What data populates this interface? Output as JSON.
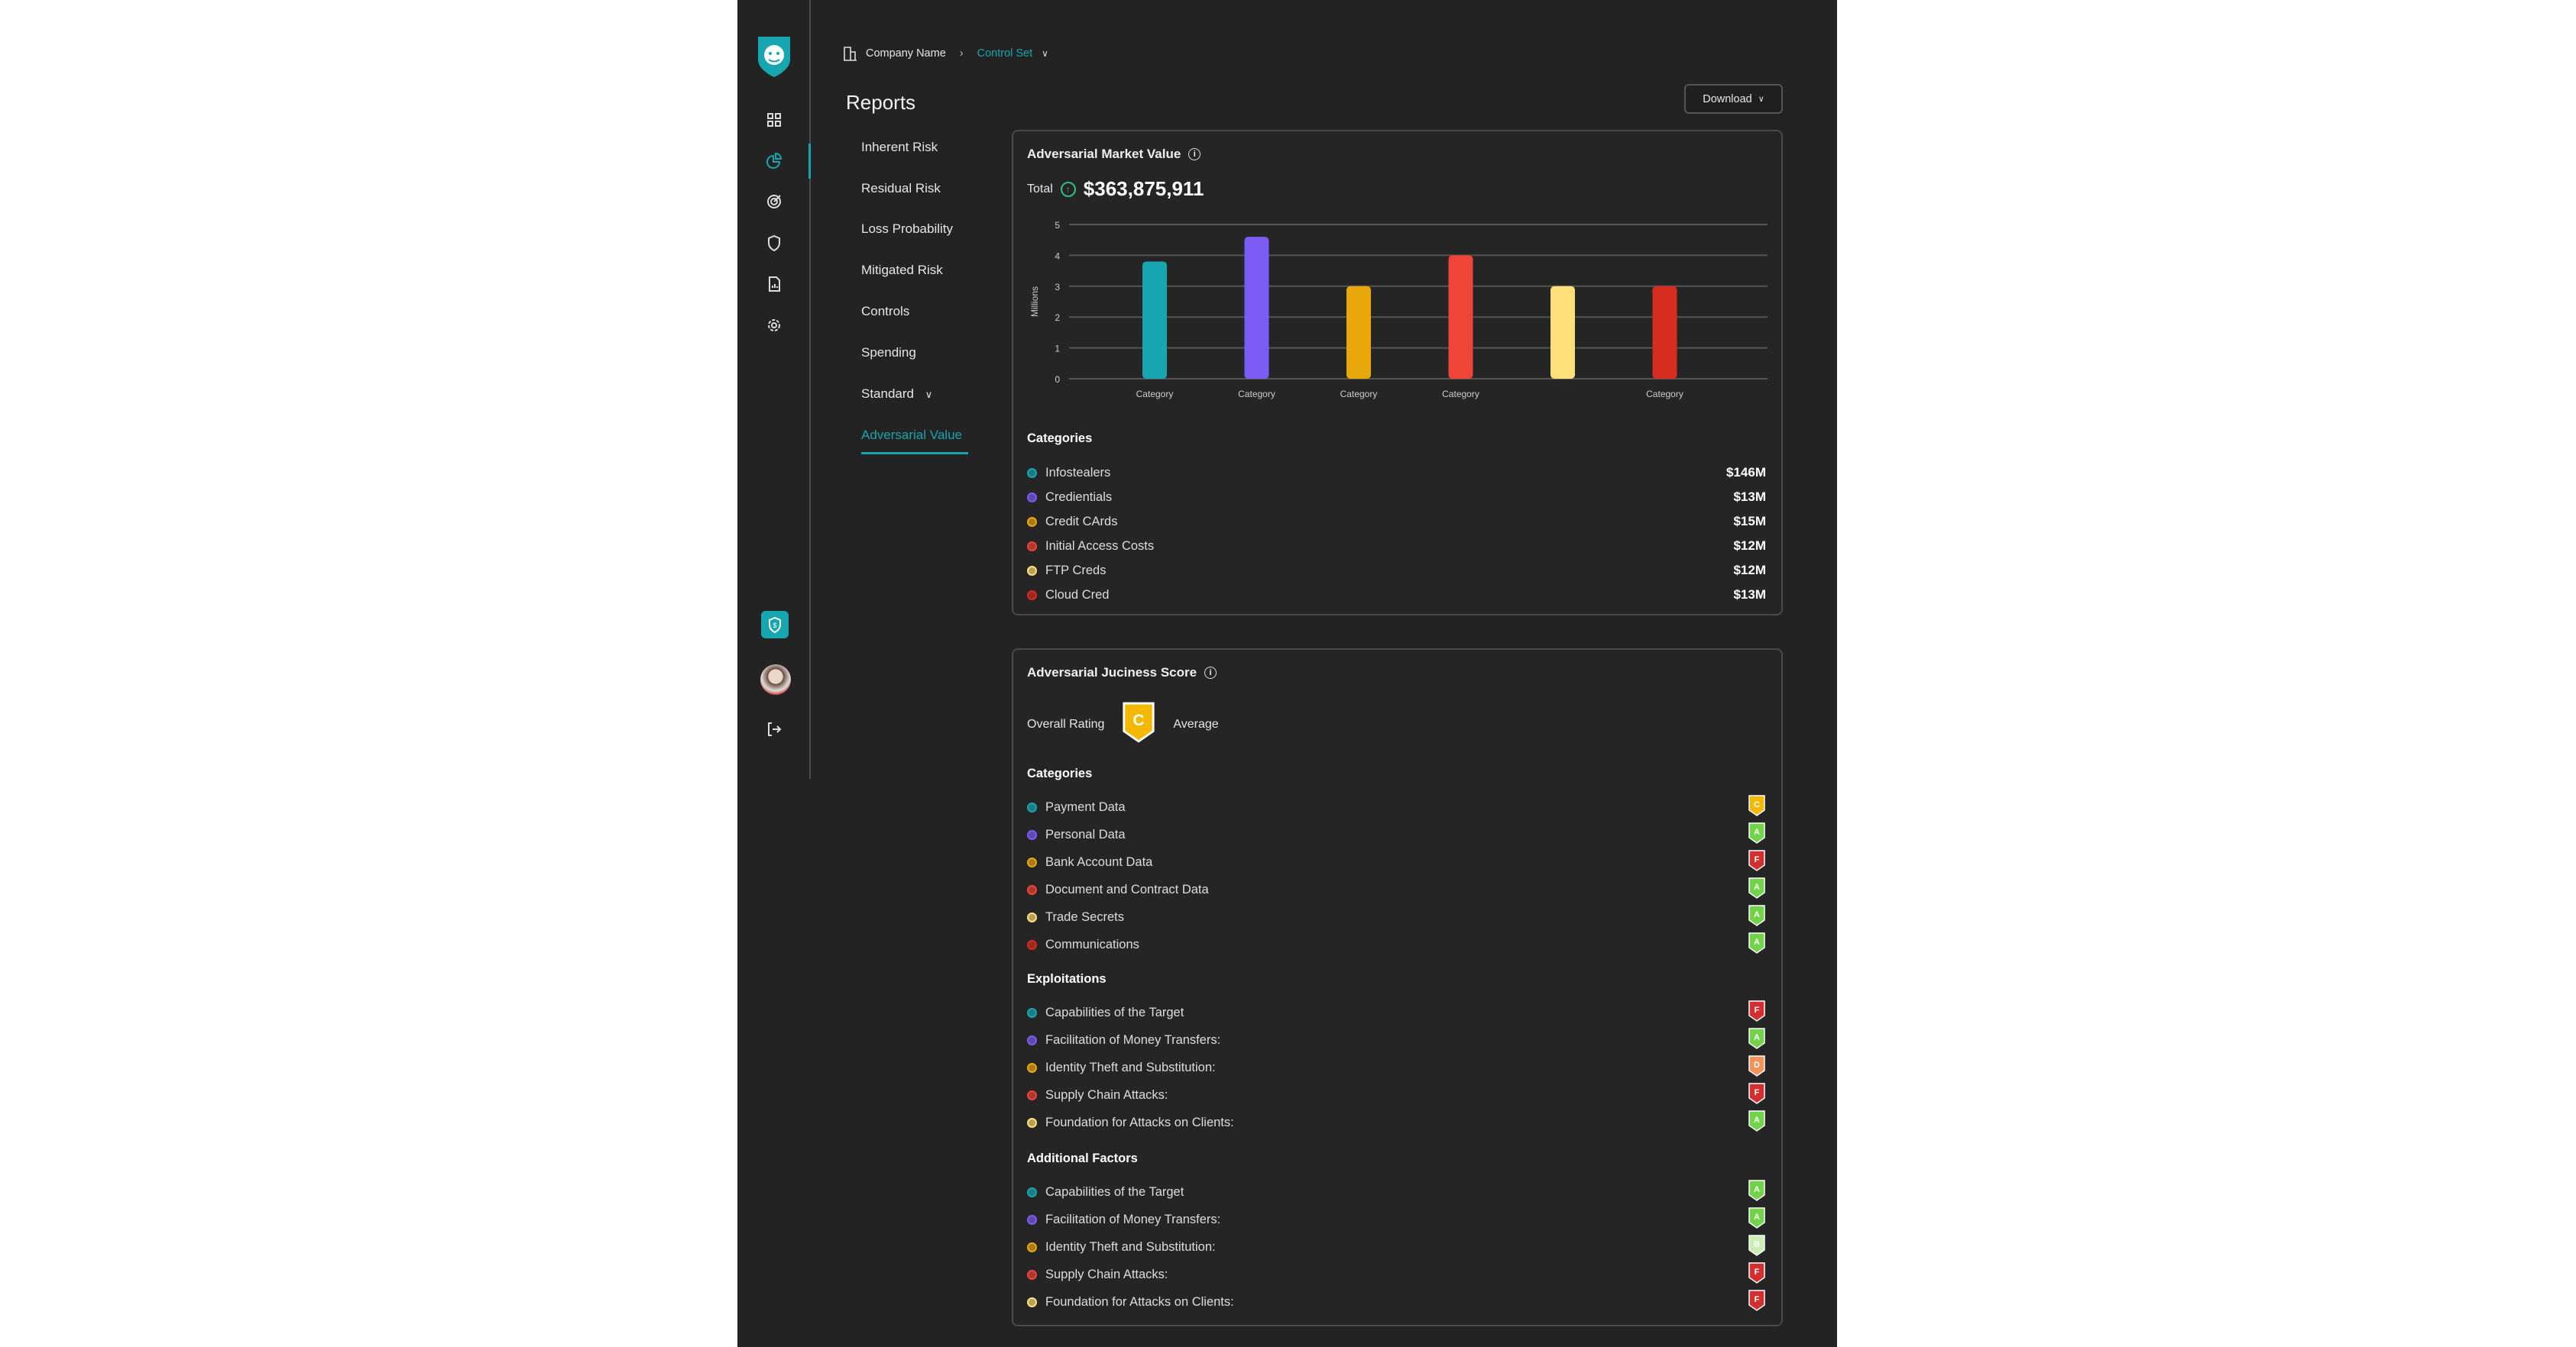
{
  "breadcrumb": {
    "company": "Company Name",
    "control_set": "Control Set"
  },
  "page_title": "Reports",
  "download_label": "Download",
  "subnav": [
    "Inherent Risk",
    "Residual Risk",
    "Loss Probability",
    "Mitigated Risk",
    "Controls",
    "Spending",
    "Standard",
    "Adversarial Value"
  ],
  "market": {
    "title": "Adversarial Market Value",
    "total_label": "Total",
    "total_value": "$363,875,911",
    "categories_heading": "Categories",
    "items": [
      {
        "name": "Infostealers",
        "value": "$146M",
        "color": "#17a6b0"
      },
      {
        "name": "Credientials",
        "value": "$13M",
        "color": "#7b5cf5"
      },
      {
        "name": "Credit CArds",
        "value": "$15M",
        "color": "#e8a80c"
      },
      {
        "name": "Initial Access Costs",
        "value": "$12M",
        "color": "#ef4438"
      },
      {
        "name": "FTP Creds",
        "value": "$12M",
        "color": "#fde07a"
      },
      {
        "name": "Cloud Cred",
        "value": "$13M",
        "color": "#d62d20"
      }
    ]
  },
  "chart_data": {
    "type": "bar",
    "title": "",
    "ylabel": "Millions",
    "xlabel": "",
    "ylim": [
      0,
      5
    ],
    "yticks": [
      0,
      1,
      2,
      3,
      4,
      5
    ],
    "categories": [
      "Category",
      "Category",
      "Category",
      "Category",
      "",
      "Category"
    ],
    "values": [
      3.8,
      4.6,
      3.0,
      4.0,
      3.0,
      3.0
    ],
    "colors": [
      "#17a6b0",
      "#7b5cf5",
      "#e8a80c",
      "#ef4438",
      "#fde07a",
      "#d62d20"
    ],
    "grid": true
  },
  "juciness": {
    "title": "Adversarial Juciness Score",
    "overall_label": "Overall Rating",
    "overall_grade": "C",
    "overall_text": "Average",
    "sections": [
      {
        "heading": "Categories",
        "items": [
          {
            "name": "Payment Data",
            "grade": "C"
          },
          {
            "name": "Personal Data",
            "grade": "A"
          },
          {
            "name": "Bank Account Data",
            "grade": "F"
          },
          {
            "name": "Document and Contract Data",
            "grade": "A"
          },
          {
            "name": "Trade Secrets",
            "grade": "A"
          },
          {
            "name": "Communications",
            "grade": "A"
          }
        ]
      },
      {
        "heading": "Exploitations",
        "items": [
          {
            "name": "Capabilities of the Target",
            "grade": "F"
          },
          {
            "name": "Facilitation of Money Transfers:",
            "grade": "A"
          },
          {
            "name": "Identity Theft and Substitution:",
            "grade": "D"
          },
          {
            "name": "Supply Chain Attacks:",
            "grade": "F"
          },
          {
            "name": "Foundation for Attacks on Clients:",
            "grade": "A"
          }
        ]
      },
      {
        "heading": "Additional Factors",
        "items": [
          {
            "name": "Capabilities of the Target",
            "grade": "A"
          },
          {
            "name": "Facilitation of Money Transfers:",
            "grade": "A"
          },
          {
            "name": "Identity Theft and Substitution:",
            "grade": "B"
          },
          {
            "name": "Supply Chain Attacks:",
            "grade": "F"
          },
          {
            "name": "Foundation for Attacks on Clients:",
            "grade": "F"
          }
        ]
      }
    ]
  },
  "dot_colors": [
    "#17a6b0",
    "#7b5cf5",
    "#e8a80c",
    "#ef4438",
    "#fde07a",
    "#d62d20"
  ],
  "grade_colors": {
    "A": "#72d34a",
    "B": "#c9efb4",
    "C": "#f5b800",
    "D": "#f4925c",
    "F": "#d32f2f"
  }
}
